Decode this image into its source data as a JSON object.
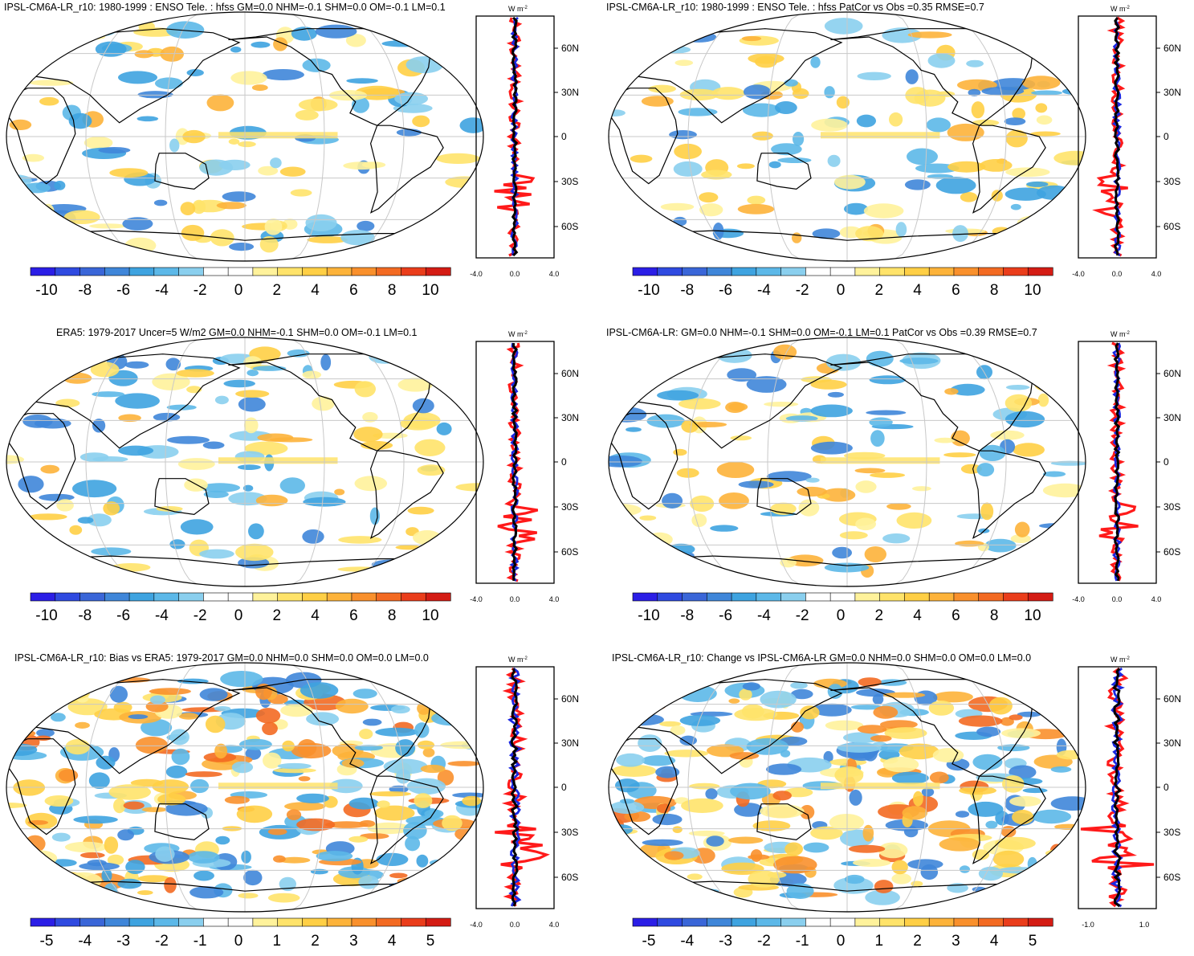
{
  "figure": {
    "panels": [
      {
        "title": "IPSL-CM6A-LR_r10: 1980-1999 : ENSO Tele. : hfss GM=0.0 NHM=-0.1 SHM=0.0 OM=-0.1 LM=0.1",
        "units": "W m",
        "colorbar_labels": [
          "-10",
          "-8",
          "-6",
          "-4",
          "-2",
          "0",
          "2",
          "4",
          "6",
          "8",
          "10"
        ],
        "profile_xticks": [
          "-4.0",
          "0.0",
          "4.0"
        ],
        "lat_labels": [
          "60N",
          "30N",
          "0",
          "30S",
          "60S"
        ]
      },
      {
        "title": "IPSL-CM6A-LR_r10: 1980-1999 : ENSO Tele. : hfss PatCor vs Obs =0.35 RMSE=0.7",
        "units": "W m",
        "colorbar_labels": [
          "-10",
          "-8",
          "-6",
          "-4",
          "-2",
          "0",
          "2",
          "4",
          "6",
          "8",
          "10"
        ],
        "profile_xticks": [
          "-4.0",
          "0.0",
          "4.0"
        ],
        "lat_labels": [
          "60N",
          "30N",
          "0",
          "30S",
          "60S"
        ]
      },
      {
        "title": "ERA5: 1979-2017 Uncer=5 W/m2 GM=0.0 NHM=-0.1 SHM=0.0 OM=-0.1 LM=0.1",
        "units": "W m",
        "colorbar_labels": [
          "-10",
          "-8",
          "-6",
          "-4",
          "-2",
          "0",
          "2",
          "4",
          "6",
          "8",
          "10"
        ],
        "profile_xticks": [
          "-4.0",
          "0.0",
          "4.0"
        ],
        "lat_labels": [
          "60N",
          "30N",
          "0",
          "30S",
          "60S"
        ]
      },
      {
        "title": "IPSL-CM6A-LR: GM=0.0 NHM=-0.1 SHM=0.0 OM=-0.1 LM=0.1 PatCor vs Obs =0.39 RMSE=0.7",
        "units": "W m",
        "colorbar_labels": [
          "-10",
          "-8",
          "-6",
          "-4",
          "-2",
          "0",
          "2",
          "4",
          "6",
          "8",
          "10"
        ],
        "profile_xticks": [
          "-4.0",
          "0.0",
          "4.0"
        ],
        "lat_labels": [
          "60N",
          "30N",
          "0",
          "30S",
          "60S"
        ]
      },
      {
        "title": "IPSL-CM6A-LR_r10: Bias vs ERA5: 1979-2017 GM=0.0 NHM=0.0 SHM=0.0 OM=0.0 LM=0.0",
        "units": "W m",
        "colorbar_labels": [
          "-5",
          "-4",
          "-3",
          "-2",
          "-1",
          "0",
          "1",
          "2",
          "3",
          "4",
          "5"
        ],
        "profile_xticks": [
          "-4.0",
          "0.0",
          "4.0"
        ],
        "lat_labels": [
          "60N",
          "30N",
          "0",
          "30S",
          "60S"
        ]
      },
      {
        "title": "IPSL-CM6A-LR_r10: Change vs IPSL-CM6A-LR GM=0.0 NHM=0.0 SHM=0.0 OM=0.0 LM=0.0",
        "units": "W m",
        "colorbar_labels": [
          "-5",
          "-4",
          "-3",
          "-2",
          "-1",
          "0",
          "1",
          "2",
          "3",
          "4",
          "5"
        ],
        "profile_xticks": [
          "-1.0",
          "1.0"
        ],
        "lat_labels": [
          "60N",
          "30N",
          "0",
          "30S",
          "60S"
        ]
      }
    ],
    "units_superscript": "-2",
    "colors": {
      "palette": [
        "#2b1ee6",
        "#2f4ae0",
        "#3a66d8",
        "#3f86d9",
        "#3ea3e0",
        "#5cb8e8",
        "#8acfee",
        "#ffffff",
        "#ffffff",
        "#fff29b",
        "#ffe36a",
        "#ffcf45",
        "#fdb33a",
        "#f9902c",
        "#f36a22",
        "#ea3d1b",
        "#d41c14"
      ],
      "zonal_red": "#ff1a1a",
      "zonal_blue": "#1a28e0",
      "zonal_black": "#000000",
      "coast": "#000000",
      "grid": "#c8c8c8"
    }
  }
}
